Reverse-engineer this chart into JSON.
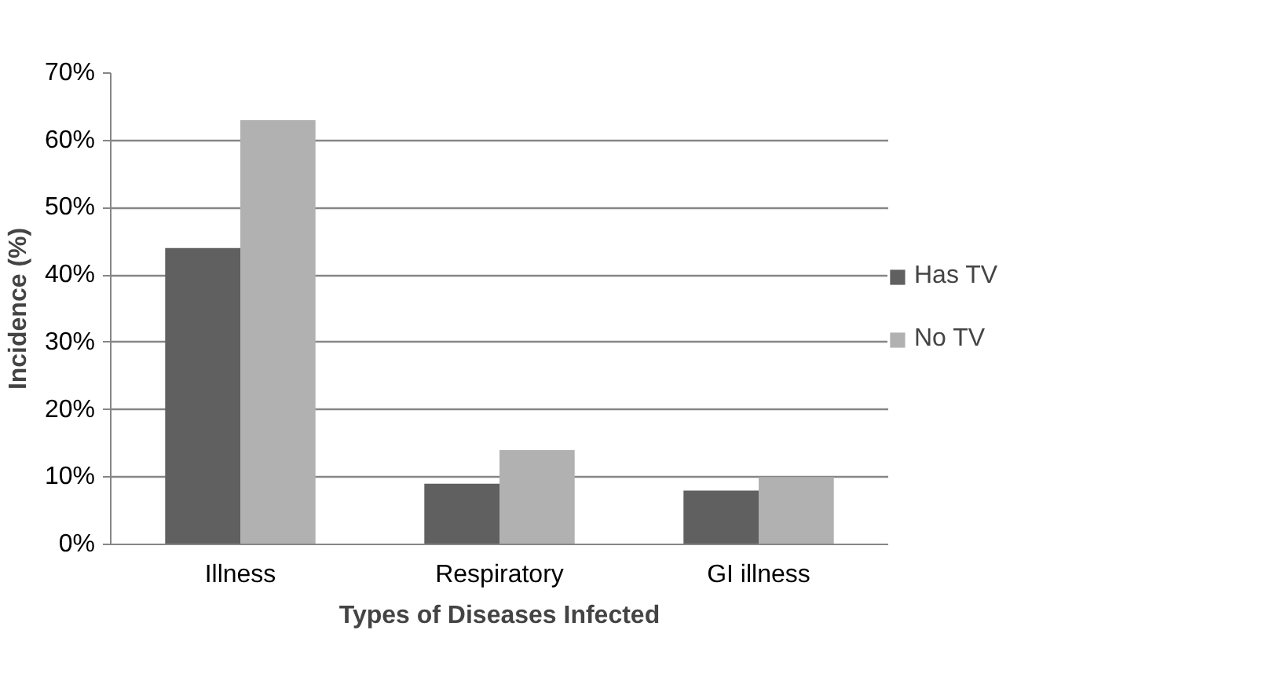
{
  "chart_data": {
    "type": "bar",
    "xlabel": "Types of Diseases Infected",
    "ylabel": "Incidence (%)",
    "categories": [
      "Illness",
      "Respiratory",
      "GI illness"
    ],
    "series": [
      {
        "name": "Has TV",
        "color": "#606060",
        "values": [
          44,
          9,
          8
        ]
      },
      {
        "name": "No TV",
        "color": "#b1b1b1",
        "values": [
          63,
          14,
          10
        ]
      }
    ],
    "ylim": [
      0,
      70
    ],
    "yticks": [
      {
        "value": 0,
        "label": "0%"
      },
      {
        "value": 10,
        "label": "10%"
      },
      {
        "value": 20,
        "label": "20%"
      },
      {
        "value": 30,
        "label": "30%"
      },
      {
        "value": 40,
        "label": "40%"
      },
      {
        "value": 50,
        "label": "50%"
      },
      {
        "value": 60,
        "label": "60%"
      },
      {
        "value": 70,
        "label": "70%"
      }
    ],
    "grid": "y",
    "legend": "right"
  }
}
